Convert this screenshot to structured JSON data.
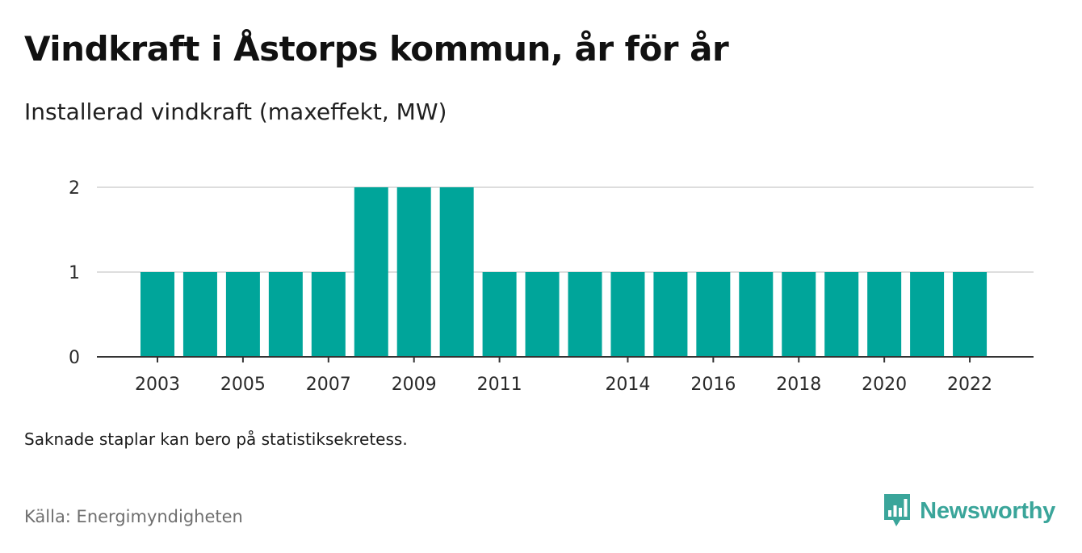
{
  "header": {
    "title": "Vindkraft i Åstorps kommun, år för år",
    "subtitle": "Installerad vindkraft (maxeffekt, MW)"
  },
  "footer": {
    "note": "Saknade staplar kan bero på statistiksekretess.",
    "source": "Källa: Energimyndigheten",
    "brand": "Newsworthy"
  },
  "colors": {
    "bar": "#00a59a",
    "grid": "#dddddd",
    "axis": "#333333",
    "brand": "#3aa59a"
  },
  "chart_data": {
    "type": "bar",
    "categories": [
      "2003",
      "2004",
      "2005",
      "2006",
      "2007",
      "2008",
      "2009",
      "2010",
      "2011",
      "2012",
      "2013",
      "2014",
      "2015",
      "2016",
      "2017",
      "2018",
      "2019",
      "2020",
      "2021",
      "2022"
    ],
    "values": [
      1,
      1,
      1,
      1,
      1,
      2,
      2,
      2,
      1,
      1,
      1,
      1,
      1,
      1,
      1,
      1,
      1,
      1,
      1,
      1
    ],
    "x_tick_labels": [
      "2003",
      "2005",
      "2007",
      "2009",
      "2011",
      "2014",
      "2016",
      "2018",
      "2020",
      "2022"
    ],
    "y_ticks": [
      0,
      1,
      2
    ],
    "ylim": [
      0,
      2
    ],
    "title": "Vindkraft i Åstorps kommun, år för år",
    "subtitle": "Installerad vindkraft (maxeffekt, MW)",
    "xlabel": "",
    "ylabel": "",
    "grid": true,
    "legend": "none"
  }
}
